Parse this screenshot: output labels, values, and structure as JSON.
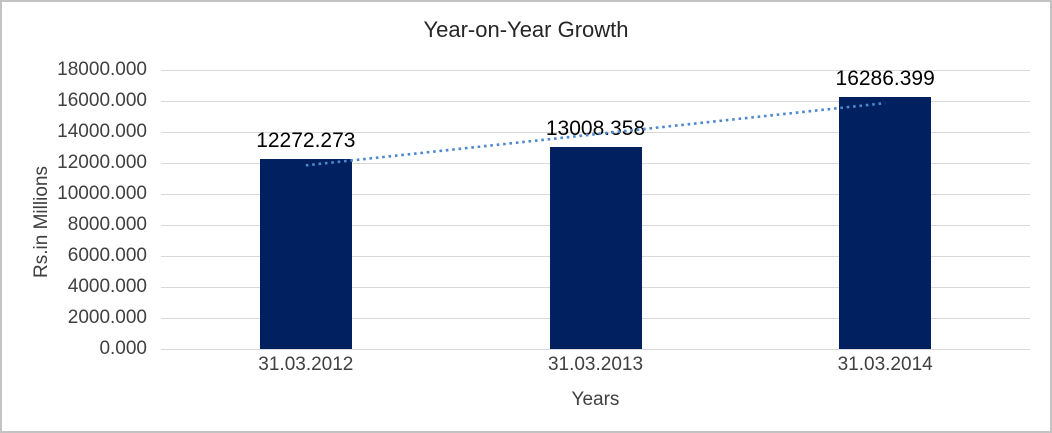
{
  "chart_data": {
    "type": "bar",
    "title": "Year-on-Year Growth",
    "categories": [
      "31.03.2012",
      "31.03.2013",
      "31.03.2014"
    ],
    "values": [
      12272.273,
      13008.358,
      16286.399
    ],
    "data_labels": [
      "12272.273",
      "13008.358",
      "16286.399"
    ],
    "xlabel": "Years",
    "ylabel": "Rs.in Millions",
    "ylim": [
      0,
      18000
    ],
    "ytick_step": 2000,
    "ytick_labels": [
      "0.000",
      "2000.000",
      "4000.000",
      "6000.000",
      "8000.000",
      "10000.000",
      "12000.000",
      "14000.000",
      "16000.000",
      "18000.000"
    ],
    "grid": true,
    "legend": "none",
    "colors": {
      "bar": "#002060",
      "trendline": "#4e88cc",
      "gridline": "#d9d9d9",
      "axis_text": "#404040",
      "data_label_text": "#000000",
      "title_text": "#262626",
      "frame_border": "#c3c3c3"
    },
    "trendline": {
      "type": "linear",
      "style": "dotted",
      "start_value": 11849,
      "end_value": 15863
    }
  }
}
